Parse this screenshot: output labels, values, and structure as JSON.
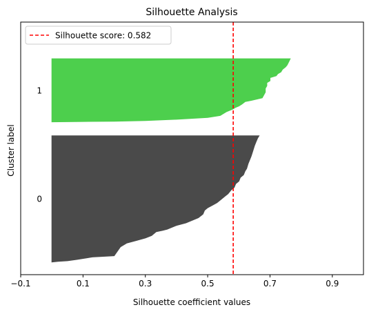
{
  "chart_data": {
    "type": "area",
    "title": "Silhouette Analysis",
    "xlabel": "Silhouette coefficient values",
    "ylabel": "Cluster label",
    "xlim": [
      -0.1,
      1.0
    ],
    "ylim": [
      0,
      100
    ],
    "xticks": [
      -0.1,
      0.1,
      0.3,
      0.5,
      0.7,
      0.9
    ],
    "xtick_labels": [
      "−0.1",
      "0.1",
      "0.3",
      "0.5",
      "0.7",
      "0.9"
    ],
    "grid": false,
    "legend": {
      "location": "upper-left",
      "entries": [
        {
          "label": "Silhouette score: 0.582",
          "style": "dashed",
          "color": "#ff0000"
        }
      ]
    },
    "silhouette_score": 0.582,
    "clusters": [
      {
        "label": "0",
        "color": "#4a4a4a",
        "y_range": [
          5,
          55
        ],
        "profile": [
          [
            0.665,
            0.0
          ],
          [
            0.66,
            0.02
          ],
          [
            0.655,
            0.05
          ],
          [
            0.65,
            0.08
          ],
          [
            0.645,
            0.12
          ],
          [
            0.64,
            0.16
          ],
          [
            0.635,
            0.19
          ],
          [
            0.63,
            0.22
          ],
          [
            0.625,
            0.26
          ],
          [
            0.62,
            0.28
          ],
          [
            0.615,
            0.31
          ],
          [
            0.605,
            0.33
          ],
          [
            0.6,
            0.36
          ],
          [
            0.59,
            0.38
          ],
          [
            0.585,
            0.41
          ],
          [
            0.575,
            0.43
          ],
          [
            0.565,
            0.46
          ],
          [
            0.555,
            0.48
          ],
          [
            0.54,
            0.51
          ],
          [
            0.53,
            0.53
          ],
          [
            0.515,
            0.55
          ],
          [
            0.5,
            0.57
          ],
          [
            0.49,
            0.59
          ],
          [
            0.485,
            0.62
          ],
          [
            0.48,
            0.63
          ],
          [
            0.47,
            0.65
          ],
          [
            0.43,
            0.69
          ],
          [
            0.4,
            0.71
          ],
          [
            0.37,
            0.74
          ],
          [
            0.355,
            0.75
          ],
          [
            0.335,
            0.76
          ],
          [
            0.32,
            0.79
          ],
          [
            0.3,
            0.81
          ],
          [
            0.27,
            0.83
          ],
          [
            0.24,
            0.85
          ],
          [
            0.22,
            0.88
          ],
          [
            0.2,
            0.95
          ],
          [
            0.13,
            0.96
          ],
          [
            0.08,
            0.98
          ],
          [
            0.05,
            0.99
          ],
          [
            0.02,
            0.995
          ],
          [
            0.0,
            1.0
          ]
        ]
      },
      {
        "label": "1",
        "color": "#4dcf4d",
        "y_range": [
          60.5,
          85.5
        ],
        "profile": [
          [
            0.765,
            0.0
          ],
          [
            0.76,
            0.05
          ],
          [
            0.755,
            0.1
          ],
          [
            0.75,
            0.13
          ],
          [
            0.74,
            0.17
          ],
          [
            0.735,
            0.21
          ],
          [
            0.725,
            0.24
          ],
          [
            0.72,
            0.27
          ],
          [
            0.7,
            0.3
          ],
          [
            0.7,
            0.35
          ],
          [
            0.69,
            0.38
          ],
          [
            0.69,
            0.43
          ],
          [
            0.685,
            0.47
          ],
          [
            0.685,
            0.53
          ],
          [
            0.675,
            0.62
          ],
          [
            0.64,
            0.66
          ],
          [
            0.62,
            0.68
          ],
          [
            0.61,
            0.72
          ],
          [
            0.6,
            0.75
          ],
          [
            0.59,
            0.77
          ],
          [
            0.58,
            0.8
          ],
          [
            0.56,
            0.84
          ],
          [
            0.54,
            0.9
          ],
          [
            0.5,
            0.93
          ],
          [
            0.4,
            0.96
          ],
          [
            0.3,
            0.98
          ],
          [
            0.2,
            0.99
          ],
          [
            0.1,
            0.995
          ],
          [
            0.0,
            1.0
          ]
        ]
      }
    ]
  }
}
